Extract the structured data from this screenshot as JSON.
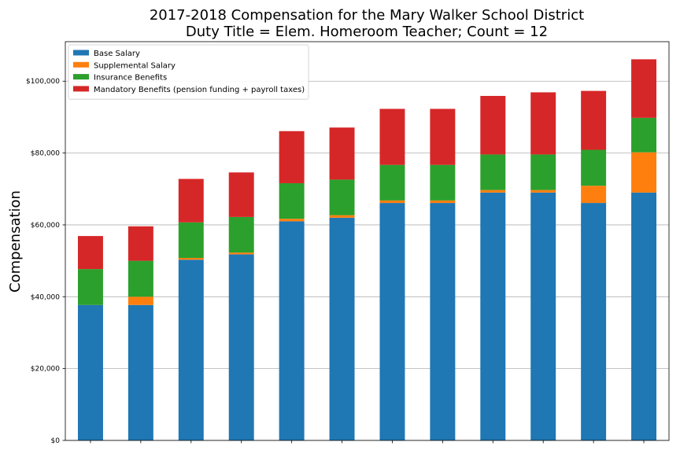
{
  "chart_data": {
    "type": "bar",
    "stacked": true,
    "title": "2017-2018 Compensation for the Mary Walker School District",
    "subtitle": "Duty Title = Elem. Homeroom Teacher; Count = 12",
    "xlabel": "",
    "ylabel": "Compensation",
    "ylim": [
      0,
      111000
    ],
    "yticks": [
      0,
      20000,
      40000,
      60000,
      80000,
      100000
    ],
    "ytick_labels": [
      "$0",
      "$20,000",
      "$40,000",
      "$60,000",
      "$80,000",
      "$100,000"
    ],
    "grid": "horizontal",
    "legend_position": "top-left",
    "categories": [
      "",
      "",
      "",
      "",
      "",
      "",
      "",
      "",
      "",
      "",
      "",
      ""
    ],
    "series": [
      {
        "name": "Base Salary",
        "color": "#1f77b4",
        "values": [
          37700,
          37700,
          50300,
          51800,
          61000,
          62000,
          66100,
          66100,
          69000,
          69000,
          66100,
          69000
        ]
      },
      {
        "name": "Supplemental Salary",
        "color": "#ff7f0e",
        "values": [
          0,
          2300,
          500,
          500,
          700,
          700,
          700,
          700,
          700,
          700,
          4800,
          11200
        ]
      },
      {
        "name": "Insurance Benefits",
        "color": "#2ca02c",
        "values": [
          10000,
          10000,
          9900,
          9900,
          9900,
          9900,
          9900,
          9900,
          9900,
          9900,
          10000,
          9600
        ]
      },
      {
        "name": "Mandatory Benefits (pension funding + payroll taxes)",
        "color": "#d62728",
        "values": [
          9200,
          9600,
          12100,
          12400,
          14500,
          14500,
          15600,
          15600,
          16300,
          17300,
          16400,
          16300
        ]
      }
    ]
  }
}
